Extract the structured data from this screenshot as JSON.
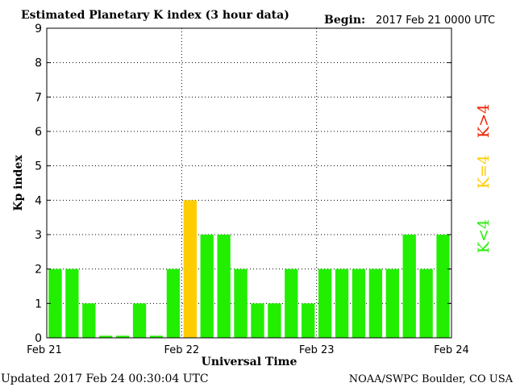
{
  "chart_data": {
    "type": "bar",
    "title": "Estimated Planetary K index (3 hour data)",
    "begin_label": "Begin:",
    "begin_value": "2017 Feb 21 0000 UTC",
    "ylabel": "Kp index",
    "xlabel": "Universal Time",
    "ylim": [
      0,
      9
    ],
    "yticks": [
      "0",
      "1",
      "2",
      "3",
      "4",
      "5",
      "6",
      "7",
      "8",
      "9"
    ],
    "xticks": [
      "Feb 21",
      "Feb 22",
      "Feb 23",
      "Feb 24"
    ],
    "values": [
      2,
      2,
      1,
      0.06,
      0.06,
      1,
      0.06,
      2,
      4,
      3,
      3,
      2,
      1,
      1,
      2,
      1,
      2,
      2,
      2,
      2,
      2,
      3,
      2,
      3
    ],
    "grid": "dotted",
    "legend": [
      {
        "label": "K<4",
        "color": "#22ee00"
      },
      {
        "label": "K=4",
        "color": "#ffcc00"
      },
      {
        "label": "K>4",
        "color": "#ee2200"
      }
    ],
    "footer_left": "Updated 2017 Feb 24 00:30:04 UTC",
    "footer_right": "NOAA/SWPC Boulder, CO USA"
  }
}
